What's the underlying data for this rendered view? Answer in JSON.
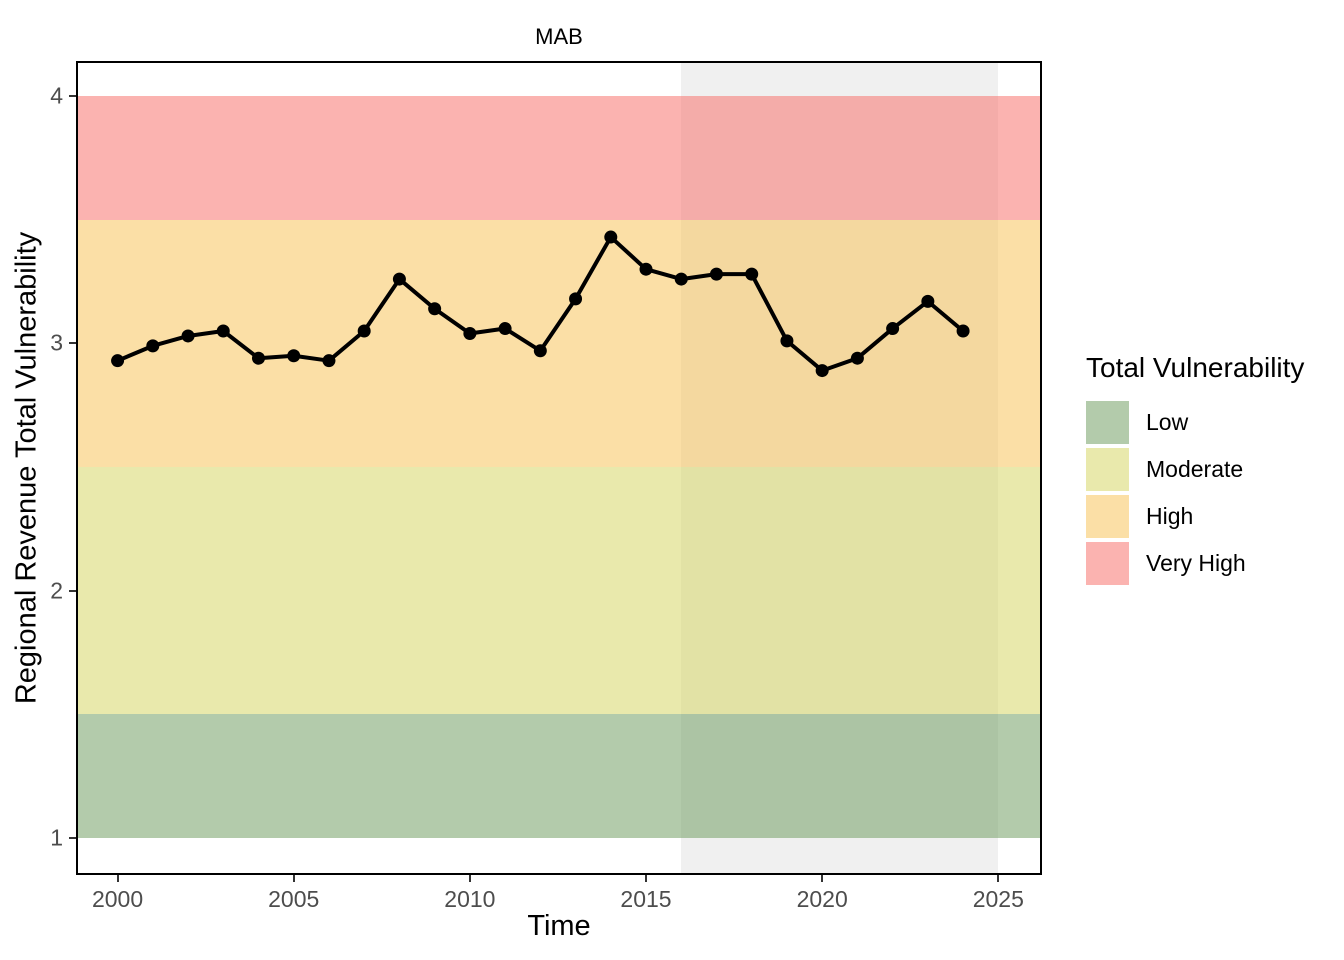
{
  "chart_data": {
    "type": "line",
    "title": "MAB",
    "xlabel": "Time",
    "ylabel": "Regional Revenue Total Vulnerability",
    "series_name": "Regional Revenue Total Vulnerability",
    "x": [
      2000,
      2001,
      2002,
      2003,
      2004,
      2005,
      2006,
      2007,
      2008,
      2009,
      2010,
      2011,
      2012,
      2013,
      2014,
      2015,
      2016,
      2017,
      2018,
      2019,
      2020,
      2021,
      2022,
      2023,
      2024
    ],
    "values": [
      2.93,
      2.99,
      3.03,
      3.05,
      2.94,
      2.95,
      2.93,
      3.05,
      3.26,
      3.14,
      3.04,
      3.06,
      2.97,
      3.18,
      3.43,
      3.3,
      3.26,
      3.28,
      3.28,
      3.01,
      2.89,
      2.94,
      3.06,
      3.17,
      3.05
    ],
    "xlim": [
      1998.82,
      2026.24
    ],
    "ylim": [
      0.85,
      4.142
    ],
    "x_ticks": [
      2000,
      2005,
      2010,
      2015,
      2020,
      2025
    ],
    "y_ticks": [
      1,
      2,
      3,
      4
    ],
    "grid": false,
    "legend_position": "right",
    "line_color": "#000000",
    "point_color": "#000000",
    "point_radius": 6.5,
    "line_width": 4,
    "vulnerability_bands": [
      {
        "label": "Low",
        "from": 1.0,
        "to": 1.5,
        "fill": "rgba(103,151,87,0.5)",
        "swatch": "#b3cbab"
      },
      {
        "label": "Moderate",
        "from": 1.5,
        "to": 2.5,
        "fill": "rgba(211,211,89,0.5)",
        "swatch": "#e9e9ac"
      },
      {
        "label": "High",
        "from": 2.5,
        "to": 3.5,
        "fill": "rgba(247,191,77,0.5)",
        "swatch": "#fbdfa6"
      },
      {
        "label": "Very High",
        "from": 3.5,
        "to": 4.0,
        "fill": "rgba(247,103,97,0.5)",
        "swatch": "#fbb3b0"
      }
    ],
    "shaded_x_region": {
      "from": 2016,
      "to": 2025,
      "fill": "#f0f0f0"
    }
  },
  "legend": {
    "title": "Total Vulnerability",
    "items": [
      {
        "label": "Low",
        "color": "#b3cbab"
      },
      {
        "label": "Moderate",
        "color": "#e9e9ac"
      },
      {
        "label": "High",
        "color": "#fbdfa6"
      },
      {
        "label": "Very High",
        "color": "#fbb3b0"
      }
    ]
  },
  "colors": {
    "tick_label": "#4d4d4d",
    "axis_title": "#000000",
    "panel_border": "#000000",
    "background": "#ffffff"
  }
}
